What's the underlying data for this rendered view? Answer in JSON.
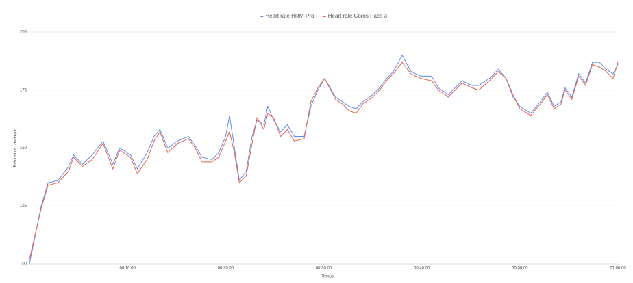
{
  "chart_data": {
    "type": "line",
    "x_label": "Temps",
    "y_label": "Fréquence cardiaque",
    "x": [
      0,
      1.2,
      1.9,
      2.9,
      4,
      4.5,
      5.4,
      6.4,
      7.5,
      8.5,
      9.2,
      10.3,
      11,
      12,
      12.7,
      13.3,
      14.1,
      15.1,
      16.2,
      16.9,
      17.6,
      18.6,
      19.3,
      20,
      20.4,
      20.9,
      21.4,
      22.1,
      22.7,
      23.2,
      23.9,
      24.3,
      24.9,
      25.6,
      26.3,
      27,
      28,
      28.7,
      29.4,
      30.1,
      31.2,
      31.9,
      32.6,
      33.3,
      34,
      35,
      35.7,
      36.4,
      37.1,
      38,
      38.9,
      39.9,
      41,
      41.7,
      42.7,
      43.4,
      44.1,
      45.1,
      45.8,
      46.9,
      47.8,
      48.6,
      49.3,
      50,
      51.1,
      52.1,
      52.8,
      53.5,
      54.2,
      54.6,
      55.3,
      56,
      56.7,
      57.4,
      58.1,
      58.8,
      59.5,
      60
    ],
    "series": [
      {
        "name": "Heart rate HRM-Pro",
        "color": "#5b8def",
        "values": [
          100,
          125,
          135,
          136,
          142,
          147,
          143,
          147,
          153,
          143,
          150,
          147,
          141,
          148,
          155,
          158,
          150,
          153,
          155,
          151,
          146,
          145,
          148,
          155,
          164,
          150,
          136,
          140,
          155,
          162,
          160,
          168,
          162,
          157,
          160,
          155,
          155,
          168,
          175,
          180,
          172,
          170,
          168,
          167,
          170,
          173,
          176,
          180,
          183,
          190,
          183,
          181,
          181,
          176,
          173,
          176,
          179,
          177,
          177,
          180,
          184,
          180,
          172,
          168,
          165,
          170,
          174,
          168,
          170,
          176,
          172,
          182,
          178,
          187,
          187,
          184,
          182,
          186
        ]
      },
      {
        "name": "Heart rate Coros Pace 3",
        "color": "#e8604c",
        "values": [
          102,
          124,
          134,
          135,
          140,
          146,
          142,
          145,
          152,
          141,
          149,
          146,
          139,
          145,
          153,
          157,
          148,
          152,
          154,
          150,
          144,
          144,
          146,
          153,
          157,
          148,
          135,
          138,
          152,
          163,
          158,
          165,
          163,
          155,
          158,
          153,
          154,
          170,
          176,
          180,
          171,
          169,
          166,
          165,
          169,
          172,
          175,
          179,
          182,
          187,
          182,
          180,
          179,
          175,
          172,
          175,
          178,
          176,
          175,
          179,
          183,
          180,
          173,
          167,
          164,
          169,
          173,
          167,
          169,
          175,
          171,
          181,
          177,
          186,
          185,
          183,
          180,
          187
        ]
      }
    ],
    "xlim": [
      0,
      60
    ],
    "xticks": [
      {
        "value": 10,
        "label": "00:10:00"
      },
      {
        "value": 20,
        "label": "00:20:00"
      },
      {
        "value": 30,
        "label": "00:30:00"
      },
      {
        "value": 40,
        "label": "00:40:00"
      },
      {
        "value": 50,
        "label": "00:50:00"
      },
      {
        "value": 60,
        "label": "01:00:00"
      }
    ],
    "ylim": [
      100,
      200
    ],
    "yticks": [
      100,
      125,
      150,
      175,
      200
    ],
    "grid": true,
    "legend": "top"
  }
}
